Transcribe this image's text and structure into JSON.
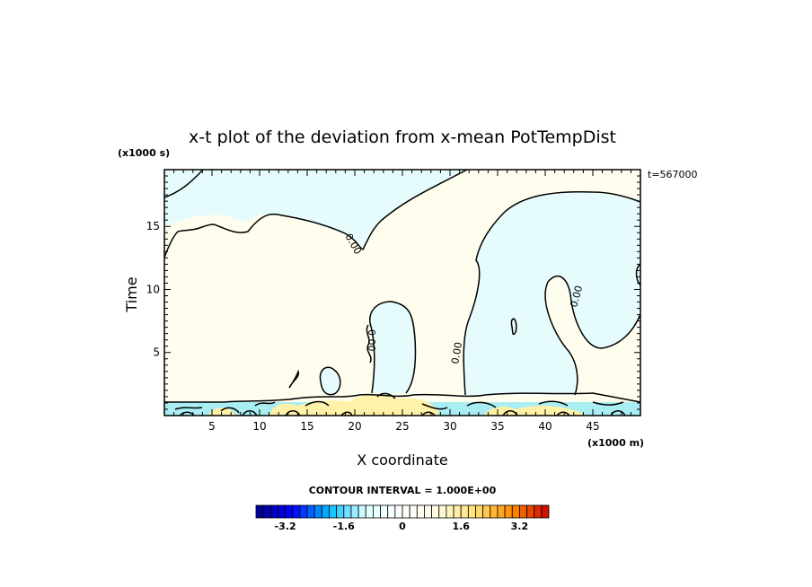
{
  "chart_data": {
    "type": "contour",
    "title": "x-t plot of the deviation from x-mean PotTempDist",
    "xlabel": "X coordinate",
    "xunit": "(x1000 m)",
    "ylabel": "Time",
    "yunit": "(x1000 s)",
    "time_label": "t=567000",
    "x_ticks": [
      5,
      10,
      15,
      20,
      25,
      30,
      35,
      40,
      45
    ],
    "y_ticks": [
      5,
      10,
      15
    ],
    "xlim": [
      0,
      50
    ],
    "ylim": [
      0,
      19.5
    ],
    "contour_interval_label": "CONTOUR INTERVAL = 1.000E+00",
    "contour_line_label": "0.00",
    "colorbar": {
      "min": -4,
      "max": 4,
      "step": 0.2,
      "tick_labels": [
        "-3.2",
        "-1.6",
        "0",
        "1.6",
        "3.2"
      ],
      "tick_values": [
        -3.2,
        -1.6,
        0,
        1.6,
        3.2
      ],
      "colors": [
        "#00008b",
        "#0000ff",
        "#00bfff",
        "#e0ffff",
        "#ffffff",
        "#fffbe0",
        "#ffe070",
        "#ff8c00",
        "#cc0000"
      ]
    },
    "regions": {
      "negative_fill": "#e6fcfc",
      "positive_fill": "#fffdee",
      "band_negative_fill": "#a9eef2",
      "band_positive_fill": "#fff2a8"
    }
  }
}
